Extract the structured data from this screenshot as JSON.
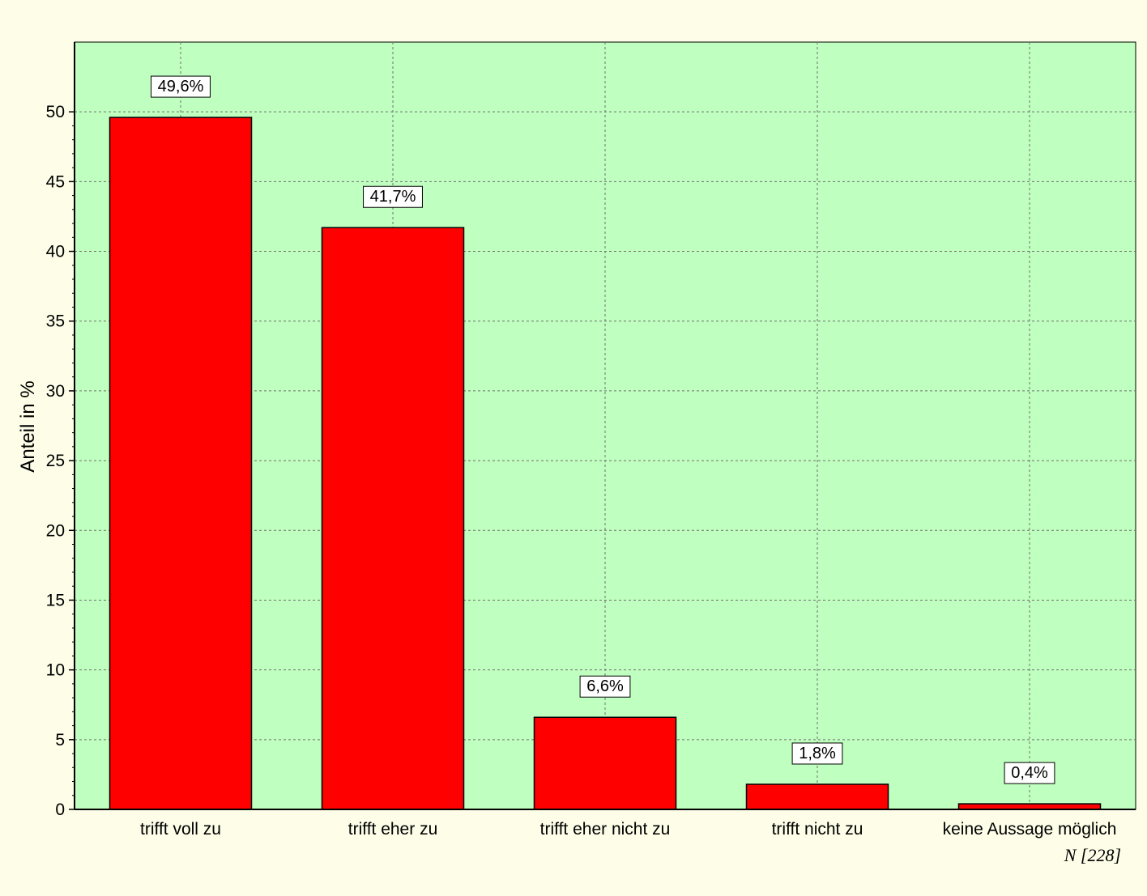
{
  "colors": {
    "page_background": "#fdfde8",
    "plot_background": "#bfffbf",
    "bar_fill": "#ff0000",
    "bar_stroke": "#000000",
    "grid": "#707070",
    "label_box_fill": "#ffffff"
  },
  "chart_data": {
    "type": "bar",
    "categories": [
      "trifft voll zu",
      "trifft eher zu",
      "trifft eher nicht zu",
      "trifft nicht zu",
      "keine Aussage möglich"
    ],
    "values": [
      49.6,
      41.7,
      6.6,
      1.8,
      0.4
    ],
    "data_labels": [
      "49,6%",
      "41,7%",
      "6,6%",
      "1,8%",
      "0,4%"
    ],
    "ylabel": "Anteil in %",
    "ylim": [
      0,
      55
    ],
    "yticks": [
      0,
      5,
      10,
      15,
      20,
      25,
      30,
      35,
      40,
      45,
      50
    ],
    "ytick_labels": [
      "0",
      "5",
      "10",
      "15",
      "20",
      "25",
      "30",
      "35",
      "40",
      "45",
      "50"
    ],
    "grid": true,
    "grid_style": "dashed",
    "legend": "none",
    "footnote": "N [228]"
  }
}
